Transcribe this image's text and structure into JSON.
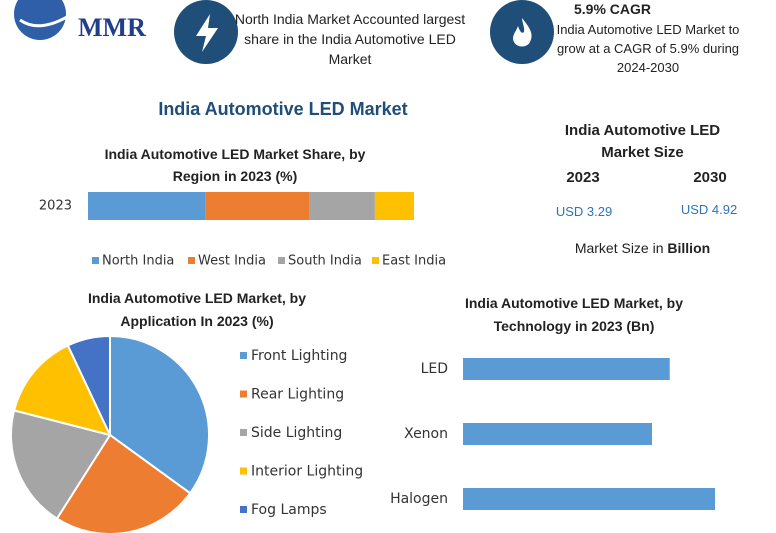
{
  "header": {
    "logo": "MMR",
    "highlight": "North India Market Accounted largest share in the India Automotive LED Market",
    "cagr_title": "5.9% CAGR",
    "cagr_text": "India Automotive LED Market to grow at a CAGR of 5.9% during 2024-2030"
  },
  "title": "India Automotive LED Market",
  "market_size": {
    "title": "India Automotive LED Market Size",
    "years": [
      "2023",
      "2030"
    ],
    "values": [
      "USD 3.29",
      "USD 4.92"
    ],
    "note": "Market Size in",
    "unit": "Billion"
  },
  "chart_data": [
    {
      "type": "stacked_bar",
      "title": "India Automotive LED Market Share, by Region in 2023 (%)",
      "categories": [
        "2023"
      ],
      "series": [
        {
          "name": "North India",
          "color": "#5b9bd5",
          "values": [
            36
          ]
        },
        {
          "name": "West India",
          "color": "#ed7d31",
          "values": [
            32
          ]
        },
        {
          "name": "South India",
          "color": "#a5a5a5",
          "values": [
            20
          ]
        },
        {
          "name": "East India",
          "color": "#ffc000",
          "values": [
            12
          ]
        }
      ]
    },
    {
      "type": "pie",
      "title": "India Automotive LED Market, by Application In 2023 (%)",
      "categories": [
        "Front Lighting",
        "Rear Lighting",
        "Side Lighting",
        "Interior Lighting",
        "Fog Lamps"
      ],
      "values": [
        35,
        24,
        20,
        14,
        7
      ],
      "colors": [
        "#5b9bd5",
        "#ed7d31",
        "#a5a5a5",
        "#ffc000",
        "#4472c4"
      ]
    },
    {
      "type": "hbar",
      "title": "India Automotive LED Market, by Technology in 2023 (Bn)",
      "categories": [
        "LED",
        "Xenon",
        "Halogen"
      ],
      "values": [
        1.05,
        0.96,
        1.28
      ],
      "color": "#5b9bd5"
    }
  ]
}
